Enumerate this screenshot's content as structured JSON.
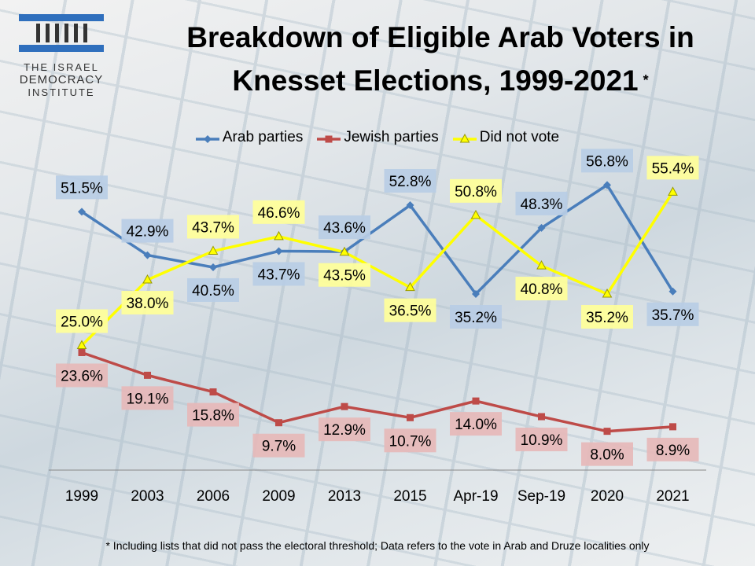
{
  "logo": {
    "line1": "THE ISRAEL",
    "line2": "DEMOCRACY",
    "line3": "INSTITUTE"
  },
  "footnote": "* Including lists that did not pass the electoral threshold; Data refers to the vote in Arab and Druze localities only",
  "chart_data": {
    "type": "line",
    "title": "Breakdown of Eligible Arab Voters in Knesset Elections, 1999-2021",
    "title_line1": "Breakdown of Eligible Arab Voters in",
    "title_line2": "Knesset Elections, 1999-2021",
    "title_mark": "*",
    "xlabel": "",
    "ylabel": "",
    "ylim": [
      0,
      60
    ],
    "grid": false,
    "legend_position": "top",
    "categories": [
      "1999",
      "2003",
      "2006",
      "2009",
      "2013",
      "2015",
      "Apr-19",
      "Sep-19",
      "2020",
      "2021"
    ],
    "series": [
      {
        "name": "Arab parties",
        "color": "#4a7ebb",
        "label_bg": "#b9cde5",
        "marker": "diamond",
        "values": [
          51.5,
          42.9,
          40.5,
          43.7,
          43.6,
          52.8,
          35.2,
          48.3,
          56.8,
          35.7
        ],
        "labels": [
          "51.5%",
          "42.9%",
          "40.5%",
          "43.7%",
          "43.6%",
          "52.8%",
          "35.2%",
          "48.3%",
          "56.8%",
          "35.7%"
        ]
      },
      {
        "name": "Jewish parties",
        "color": "#be4b48",
        "label_bg": "#e6b9b8",
        "marker": "square",
        "values": [
          23.6,
          19.1,
          15.8,
          9.7,
          12.9,
          10.7,
          14.0,
          10.9,
          8.0,
          8.9
        ],
        "labels": [
          "23.6%",
          "19.1%",
          "15.8%",
          "9.7%",
          "12.9%",
          "10.7%",
          "14.0%",
          "10.9%",
          "8.0%",
          "8.9%"
        ]
      },
      {
        "name": "Did not vote",
        "color": "#ffff00",
        "label_bg": "#ffff99",
        "marker": "triangle",
        "values": [
          25.0,
          38.0,
          43.7,
          46.6,
          43.5,
          36.5,
          50.8,
          40.8,
          35.2,
          55.4
        ],
        "labels": [
          "25.0%",
          "38.0%",
          "43.7%",
          "46.6%",
          "43.5%",
          "36.5%",
          "50.8%",
          "40.8%",
          "35.2%",
          "55.4%"
        ]
      }
    ]
  }
}
